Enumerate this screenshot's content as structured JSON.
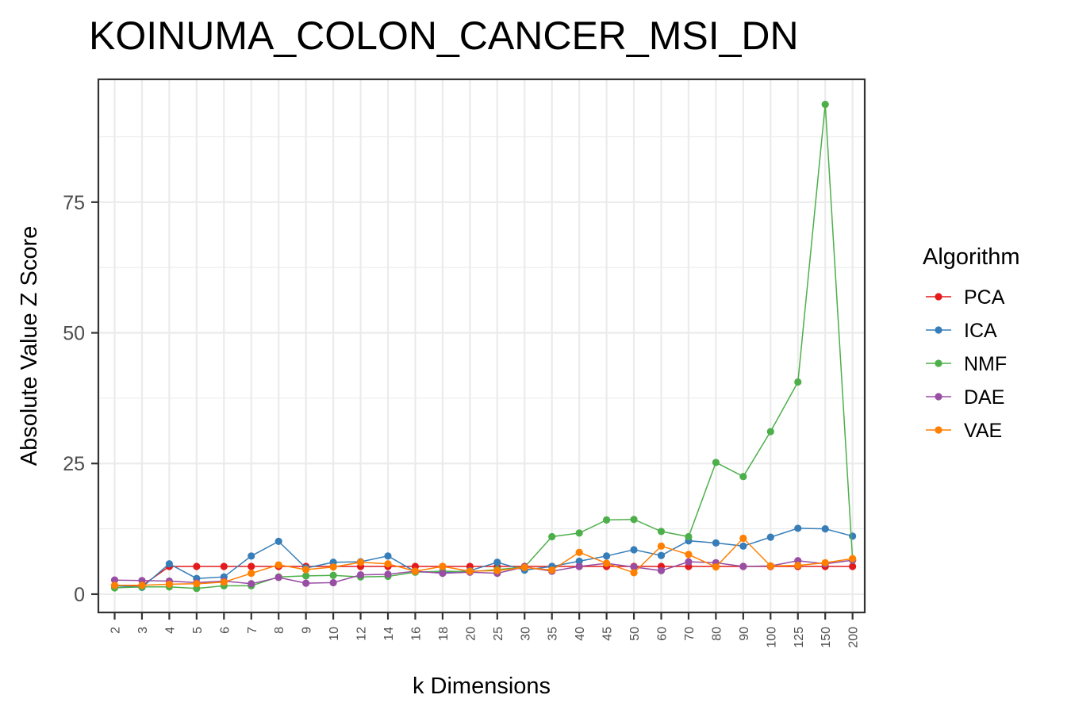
{
  "chart_data": {
    "type": "line",
    "title": "KOINUMA_COLON_CANCER_MSI_DN",
    "xlabel": "k Dimensions",
    "ylabel": "Absolute Value Z Score",
    "categories": [
      "2",
      "3",
      "4",
      "5",
      "6",
      "7",
      "8",
      "9",
      "10",
      "12",
      "14",
      "16",
      "18",
      "20",
      "25",
      "30",
      "35",
      "40",
      "45",
      "50",
      "60",
      "70",
      "80",
      "90",
      "100",
      "125",
      "150",
      "200"
    ],
    "yticks": [
      0,
      25,
      50,
      75
    ],
    "ylim": [
      -3.5,
      98.5
    ],
    "grid": true,
    "legend": {
      "title": "Algorithm",
      "position": "right"
    },
    "series": [
      {
        "name": "PCA",
        "color": "#E41A1C",
        "values": [
          1.6,
          1.6,
          5.3,
          5.3,
          5.3,
          5.3,
          5.3,
          5.3,
          5.3,
          5.3,
          5.3,
          5.3,
          5.3,
          5.3,
          5.3,
          5.3,
          5.3,
          5.3,
          5.3,
          5.3,
          5.3,
          5.3,
          5.3,
          5.3,
          5.3,
          5.3,
          5.3,
          5.3
        ]
      },
      {
        "name": "ICA",
        "color": "#377EB8",
        "values": [
          1.6,
          1.3,
          5.8,
          3.0,
          3.3,
          7.3,
          10.1,
          5.0,
          6.1,
          6.2,
          7.3,
          4.3,
          4.1,
          4.5,
          6.1,
          4.6,
          5.3,
          6.3,
          7.3,
          8.5,
          7.4,
          10.2,
          9.8,
          9.2,
          10.9,
          12.6,
          12.5,
          11.1
        ]
      },
      {
        "name": "NMF",
        "color": "#4DAF4A",
        "values": [
          1.2,
          1.4,
          1.4,
          1.1,
          1.6,
          1.6,
          3.3,
          3.5,
          3.6,
          3.3,
          3.4,
          4.2,
          4.4,
          4.3,
          4.7,
          5.2,
          11.0,
          11.7,
          14.2,
          14.3,
          12.0,
          11.0,
          25.2,
          22.5,
          31.1,
          40.6,
          93.7,
          6.5
        ]
      },
      {
        "name": "DAE",
        "color": "#984EA3",
        "values": [
          2.7,
          2.6,
          2.5,
          2.2,
          2.5,
          2.0,
          3.2,
          2.1,
          2.2,
          3.7,
          3.8,
          4.4,
          4.0,
          4.2,
          4.0,
          5.2,
          4.4,
          5.3,
          5.9,
          5.2,
          4.5,
          6.2,
          6.0,
          5.3,
          5.4,
          6.4,
          5.8,
          6.5
        ]
      },
      {
        "name": "VAE",
        "color": "#FF7F00",
        "values": [
          1.7,
          1.7,
          1.9,
          2.0,
          2.3,
          4.0,
          5.6,
          4.7,
          5.2,
          6.1,
          5.8,
          4.4,
          5.3,
          4.4,
          4.5,
          5.1,
          4.6,
          8.0,
          5.9,
          4.1,
          9.2,
          7.6,
          5.2,
          10.7,
          5.4,
          5.5,
          6.0,
          6.8
        ]
      }
    ]
  }
}
